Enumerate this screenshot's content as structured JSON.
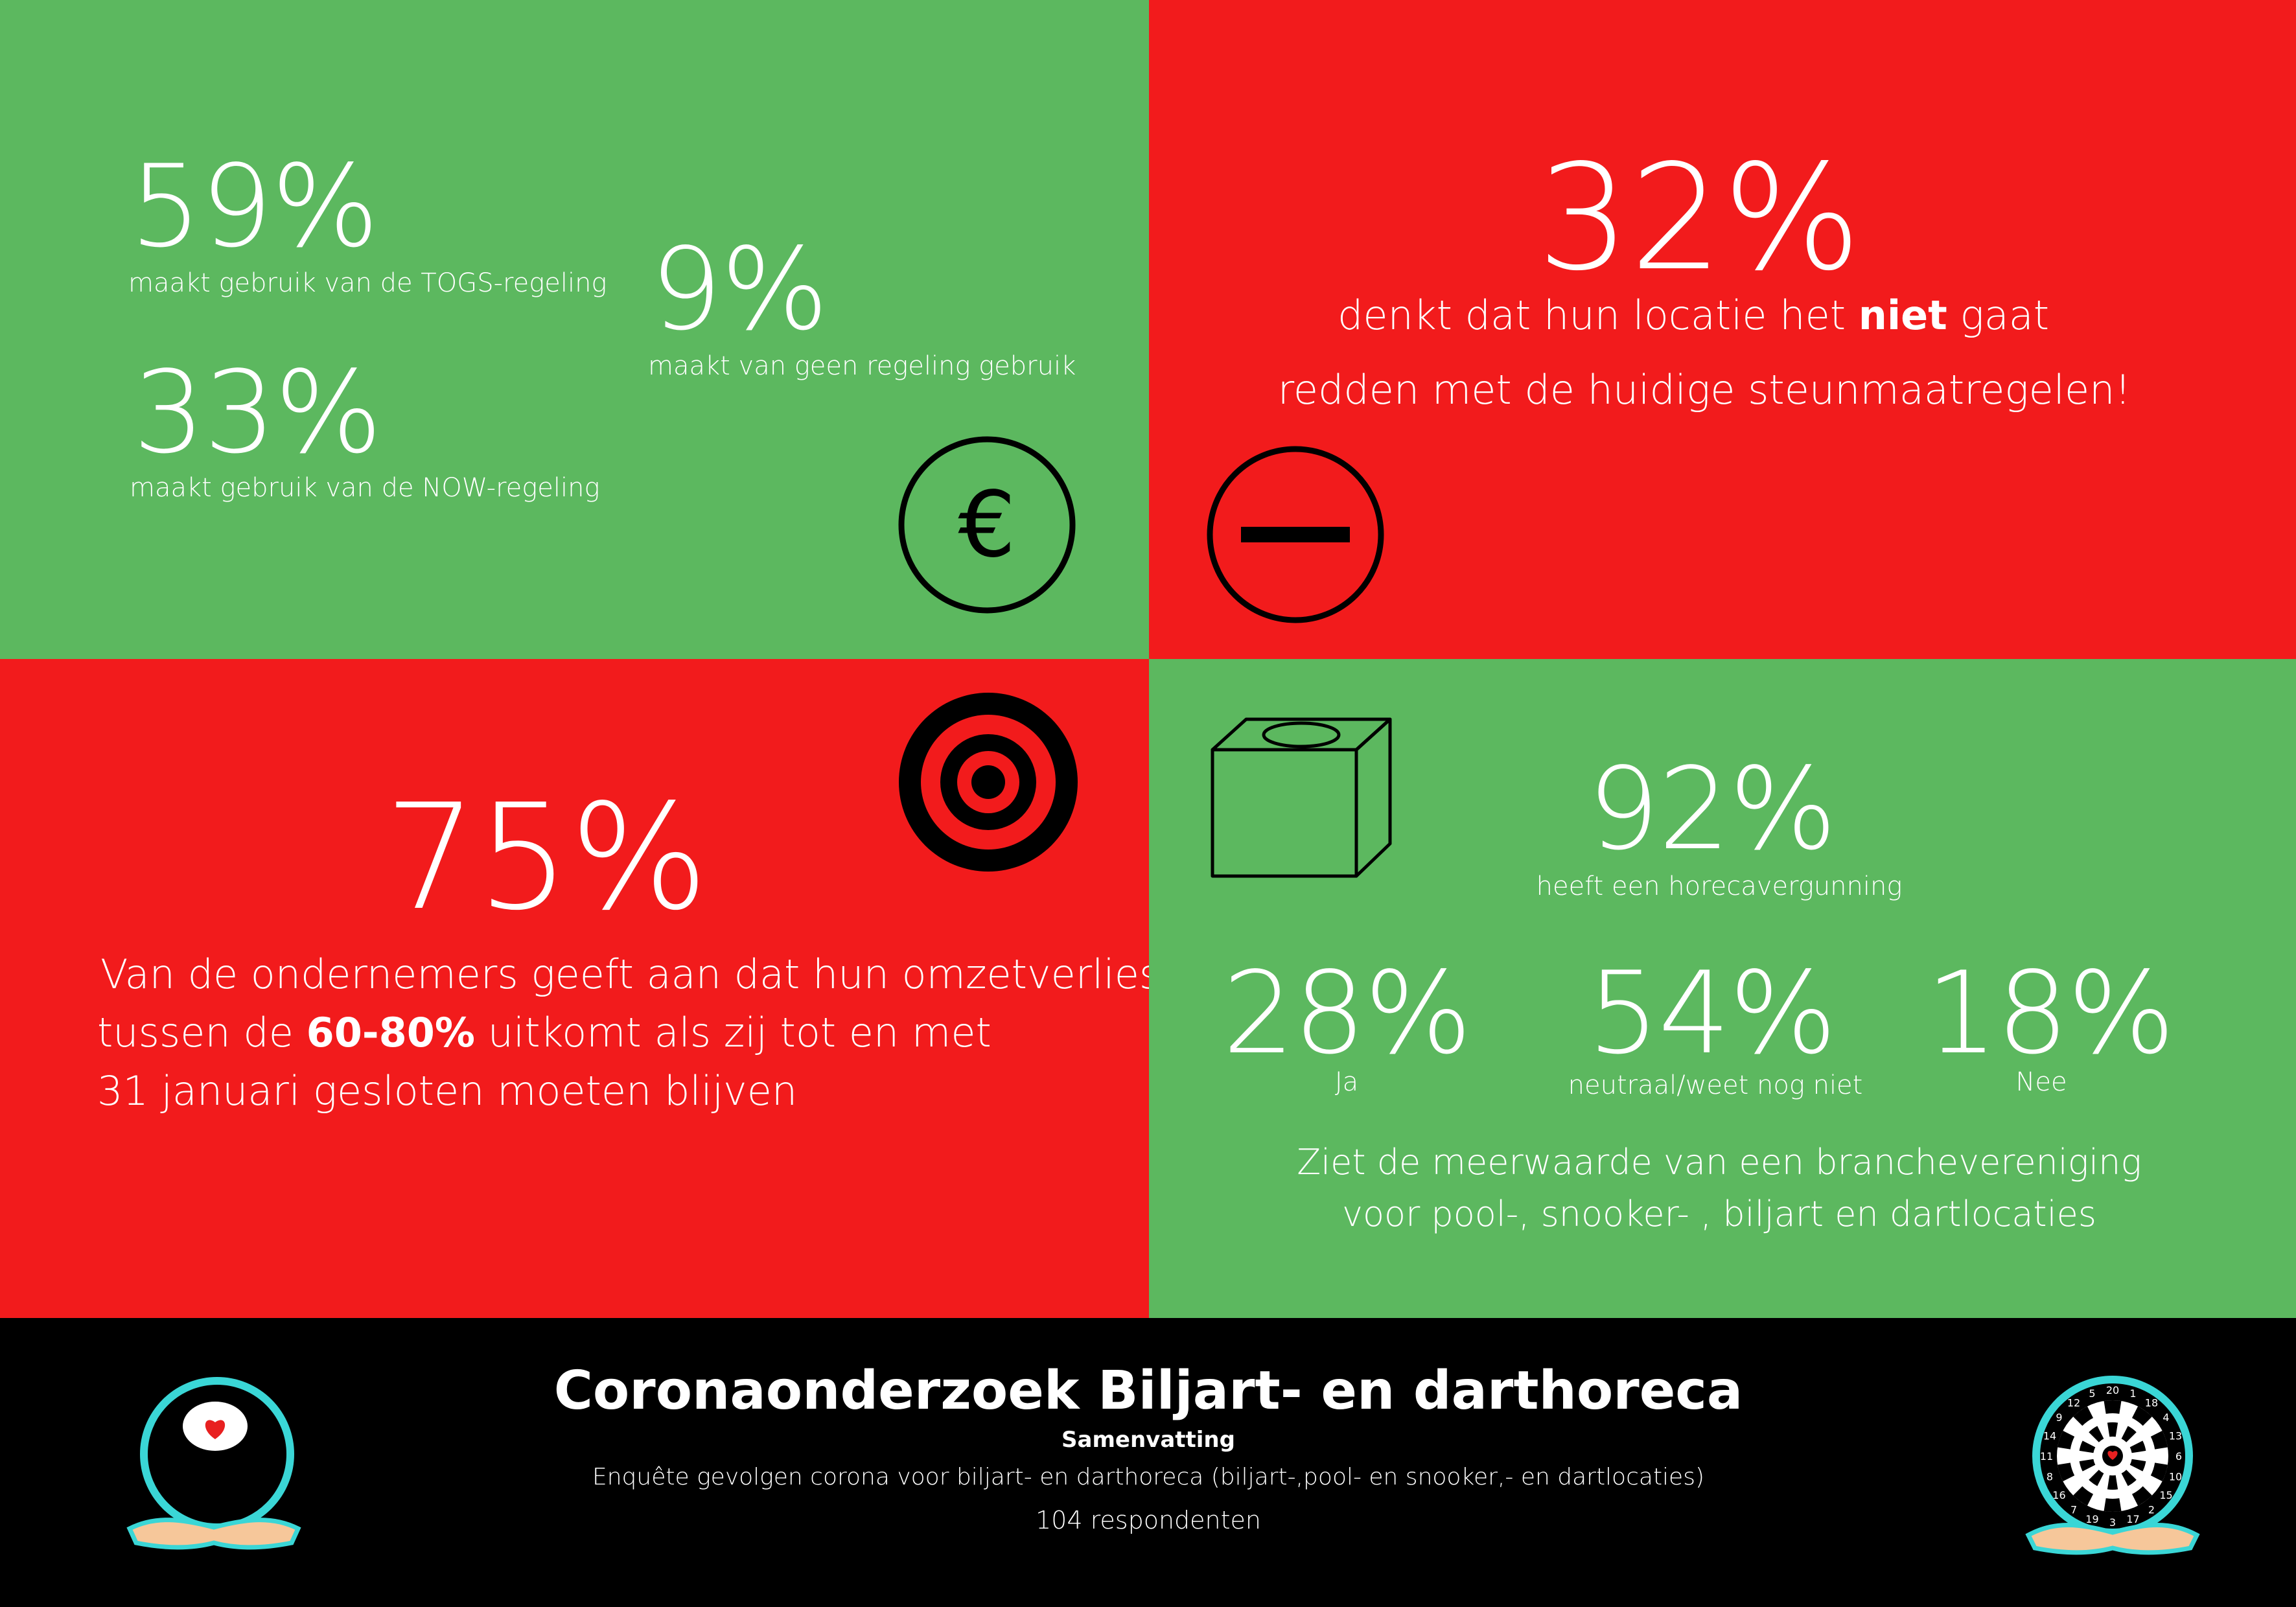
{
  "top_left": {
    "togs": {
      "value": "59%",
      "label": "maakt gebruik van de TOGS-regeling"
    },
    "now": {
      "value": "33%",
      "label": "maakt gebruik van de NOW-regeling"
    },
    "none": {
      "value": "9%",
      "label": "maakt van geen regeling gebruik"
    },
    "icon": "euro-circle-icon"
  },
  "top_right": {
    "value": "32%",
    "line1_pre": "denkt dat hun locatie het ",
    "line1_bold": "niet",
    "line1_post": " gaat",
    "line2": "redden met de huidige steunmaatregelen!",
    "icon": "minus-circle-icon"
  },
  "bottom_left": {
    "value": "75%",
    "line1": "Van de ondernemers geeft aan dat hun omzetverlies",
    "line2_pre": "tussen de ",
    "line2_bold": "60-80%",
    "line2_post": " uitkomt als zij tot en met",
    "line3": "31 januari gesloten moeten blijven",
    "icon": "target-icon"
  },
  "bottom_right": {
    "license": {
      "value": "92%",
      "label": "heeft een horecavergunning"
    },
    "yes": {
      "value": "28%",
      "label": "Ja"
    },
    "neutral": {
      "value": "54%",
      "label": "neutraal/weet nog niet"
    },
    "no": {
      "value": "18%",
      "label": "Nee"
    },
    "caption1": "Ziet de meerwaarde van een branchevereniging",
    "caption2": "voor pool-, snooker- , biljart en dartlocaties",
    "icon": "chalk-cube-icon"
  },
  "footer": {
    "title": "Coronaonderzoek Biljart- en darthoreca",
    "subtitle": "Samenvatting",
    "description": "Enquête gevolgen corona voor biljart- en darthoreca (biljart-,pool- en snooker,- en dartlocaties)",
    "respondents": "104 respondenten",
    "left_logo": "billiard-ball-hand-logo",
    "right_logo": "dartboard-hand-logo",
    "dart_numbers": [
      "20",
      "1",
      "18",
      "4",
      "13",
      "6",
      "10",
      "15",
      "2",
      "17",
      "3",
      "19",
      "7",
      "16",
      "8",
      "11",
      "14",
      "9",
      "12",
      "5"
    ]
  },
  "colors": {
    "green": "#5cb85f",
    "red": "#f21b1c",
    "black": "#000000",
    "teal": "#3ad6d6"
  }
}
